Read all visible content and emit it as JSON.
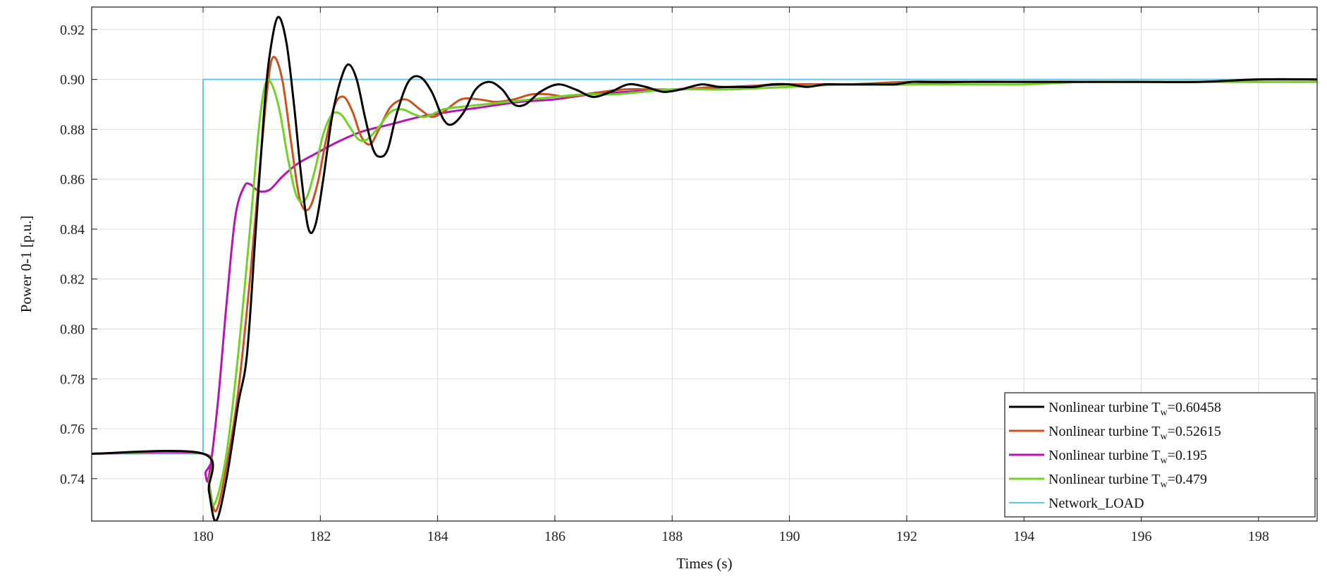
{
  "chart_data": {
    "type": "line",
    "xlabel": "Times (s)",
    "ylabel": "Power 0-1 [p.u.]",
    "xlim": [
      178.1,
      199.0
    ],
    "ylim": [
      0.723,
      0.929
    ],
    "xticks": [
      180,
      182,
      184,
      186,
      188,
      190,
      192,
      194,
      196,
      198
    ],
    "yticks": [
      0.74,
      0.76,
      0.78,
      0.8,
      0.82,
      0.84,
      0.86,
      0.88,
      0.9,
      0.92
    ],
    "xtick_labels": [
      "180",
      "182",
      "184",
      "186",
      "188",
      "190",
      "192",
      "194",
      "196",
      "198"
    ],
    "ytick_labels": [
      "0.74",
      "0.76",
      "0.78",
      "0.80",
      "0.82",
      "0.84",
      "0.86",
      "0.88",
      "0.90",
      "0.92"
    ],
    "grid": true,
    "legend_position": "bottom-right",
    "series": [
      {
        "name": "Nonlinear turbine T",
        "sub": "w",
        "value": "=0.60458",
        "color": "#000000",
        "width": 3,
        "x": [
          178.1,
          180.0,
          180.1,
          180.22,
          180.4,
          180.6,
          180.75,
          180.9,
          181.05,
          181.15,
          181.28,
          181.42,
          181.55,
          181.68,
          181.8,
          181.92,
          182.05,
          182.2,
          182.35,
          182.48,
          182.62,
          182.76,
          182.9,
          183.02,
          183.15,
          183.3,
          183.5,
          183.7,
          183.9,
          184.1,
          184.25,
          184.45,
          184.65,
          184.88,
          185.1,
          185.3,
          185.5,
          185.75,
          186.05,
          186.35,
          186.65,
          186.95,
          187.25,
          187.55,
          187.85,
          188.15,
          188.5,
          188.8,
          189.1,
          189.4,
          189.7,
          190.0,
          190.3,
          190.6,
          190.9,
          191.2,
          191.5,
          191.8,
          192.1,
          192.5,
          193.0,
          194.0,
          195.0,
          196.0,
          197.0,
          198.0,
          199.0
        ],
        "y": [
          0.75,
          0.75,
          0.735,
          0.723,
          0.74,
          0.77,
          0.79,
          0.84,
          0.89,
          0.912,
          0.925,
          0.915,
          0.89,
          0.86,
          0.84,
          0.842,
          0.86,
          0.885,
          0.9,
          0.906,
          0.9,
          0.885,
          0.872,
          0.869,
          0.872,
          0.886,
          0.899,
          0.901,
          0.895,
          0.884,
          0.882,
          0.887,
          0.896,
          0.899,
          0.896,
          0.89,
          0.89,
          0.895,
          0.898,
          0.896,
          0.893,
          0.895,
          0.898,
          0.897,
          0.895,
          0.896,
          0.898,
          0.897,
          0.897,
          0.897,
          0.898,
          0.898,
          0.897,
          0.898,
          0.898,
          0.898,
          0.898,
          0.898,
          0.899,
          0.899,
          0.899,
          0.899,
          0.899,
          0.899,
          0.899,
          0.9,
          0.9
        ]
      },
      {
        "name": "Nonlinear turbine T",
        "sub": "w",
        "value": "=0.52615",
        "color": "#c9541e",
        "width": 3,
        "x": [
          178.1,
          180.0,
          180.1,
          180.22,
          180.4,
          180.6,
          180.8,
          180.95,
          181.1,
          181.2,
          181.35,
          181.5,
          181.65,
          181.8,
          181.95,
          182.1,
          182.25,
          182.4,
          182.55,
          182.7,
          182.85,
          183.0,
          183.2,
          183.45,
          183.7,
          183.9,
          184.1,
          184.4,
          184.7,
          185.0,
          185.3,
          185.6,
          185.9,
          186.2,
          186.5,
          186.8,
          187.2,
          187.7,
          188.2,
          188.7,
          189.2,
          189.7,
          190.2,
          191.0,
          192.0,
          193.0,
          194.0,
          195.0,
          196.0,
          197.0,
          198.0,
          199.0
        ],
        "y": [
          0.75,
          0.75,
          0.738,
          0.727,
          0.745,
          0.775,
          0.82,
          0.86,
          0.897,
          0.909,
          0.9,
          0.875,
          0.852,
          0.848,
          0.858,
          0.876,
          0.89,
          0.893,
          0.887,
          0.877,
          0.874,
          0.88,
          0.889,
          0.892,
          0.888,
          0.885,
          0.887,
          0.892,
          0.892,
          0.891,
          0.892,
          0.894,
          0.894,
          0.893,
          0.894,
          0.895,
          0.896,
          0.896,
          0.896,
          0.897,
          0.897,
          0.898,
          0.898,
          0.898,
          0.899,
          0.899,
          0.899,
          0.899,
          0.899,
          0.899,
          0.9,
          0.9
        ]
      },
      {
        "name": "Nonlinear turbine T",
        "sub": "w",
        "value": "=0.195",
        "color": "#b515b5",
        "width": 3,
        "x": [
          178.1,
          180.0,
          180.04,
          180.1,
          180.25,
          180.4,
          180.55,
          180.7,
          180.8,
          180.9,
          181.0,
          181.15,
          181.35,
          181.6,
          181.9,
          182.3,
          182.7,
          183.2,
          183.7,
          184.2,
          184.8,
          185.4,
          186.0,
          186.6,
          187.2,
          188.0,
          189.0,
          190.0,
          191.0,
          192.0,
          193.0,
          194.0,
          195.0,
          196.0,
          197.0,
          198.0,
          199.0
        ],
        "y": [
          0.75,
          0.75,
          0.742,
          0.741,
          0.77,
          0.81,
          0.845,
          0.857,
          0.858,
          0.856,
          0.855,
          0.856,
          0.861,
          0.866,
          0.87,
          0.875,
          0.879,
          0.882,
          0.885,
          0.887,
          0.889,
          0.891,
          0.892,
          0.894,
          0.895,
          0.896,
          0.897,
          0.898,
          0.898,
          0.898,
          0.899,
          0.899,
          0.899,
          0.899,
          0.899,
          0.899,
          0.899
        ]
      },
      {
        "name": "Nonlinear turbine T",
        "sub": "w",
        "value": "=0.479",
        "color": "#6fd225",
        "width": 3,
        "x": [
          178.1,
          180.0,
          180.1,
          180.2,
          180.4,
          180.6,
          180.8,
          180.95,
          181.05,
          181.15,
          181.3,
          181.45,
          181.6,
          181.75,
          181.9,
          182.05,
          182.2,
          182.35,
          182.5,
          182.65,
          182.8,
          183.0,
          183.2,
          183.4,
          183.6,
          183.8,
          184.1,
          184.4,
          184.8,
          185.2,
          185.6,
          186.0,
          186.5,
          187.0,
          187.5,
          188.0,
          188.5,
          189.0,
          190.0,
          191.0,
          192.0,
          193.0,
          194.0,
          195.0,
          196.0,
          197.0,
          198.0,
          199.0
        ],
        "y": [
          0.75,
          0.75,
          0.737,
          0.73,
          0.75,
          0.79,
          0.84,
          0.88,
          0.897,
          0.899,
          0.888,
          0.868,
          0.853,
          0.852,
          0.863,
          0.878,
          0.886,
          0.886,
          0.881,
          0.876,
          0.876,
          0.881,
          0.887,
          0.888,
          0.886,
          0.885,
          0.888,
          0.889,
          0.89,
          0.891,
          0.892,
          0.893,
          0.894,
          0.894,
          0.895,
          0.896,
          0.896,
          0.896,
          0.897,
          0.898,
          0.898,
          0.898,
          0.898,
          0.899,
          0.899,
          0.899,
          0.899,
          0.899
        ]
      },
      {
        "name": "Network_LOAD",
        "sub": "",
        "value": "",
        "color": "#5bc8e8",
        "width": 2,
        "x": [
          178.1,
          180.0,
          180.0,
          199.0
        ],
        "y": [
          0.75,
          0.75,
          0.9,
          0.9
        ]
      }
    ]
  }
}
